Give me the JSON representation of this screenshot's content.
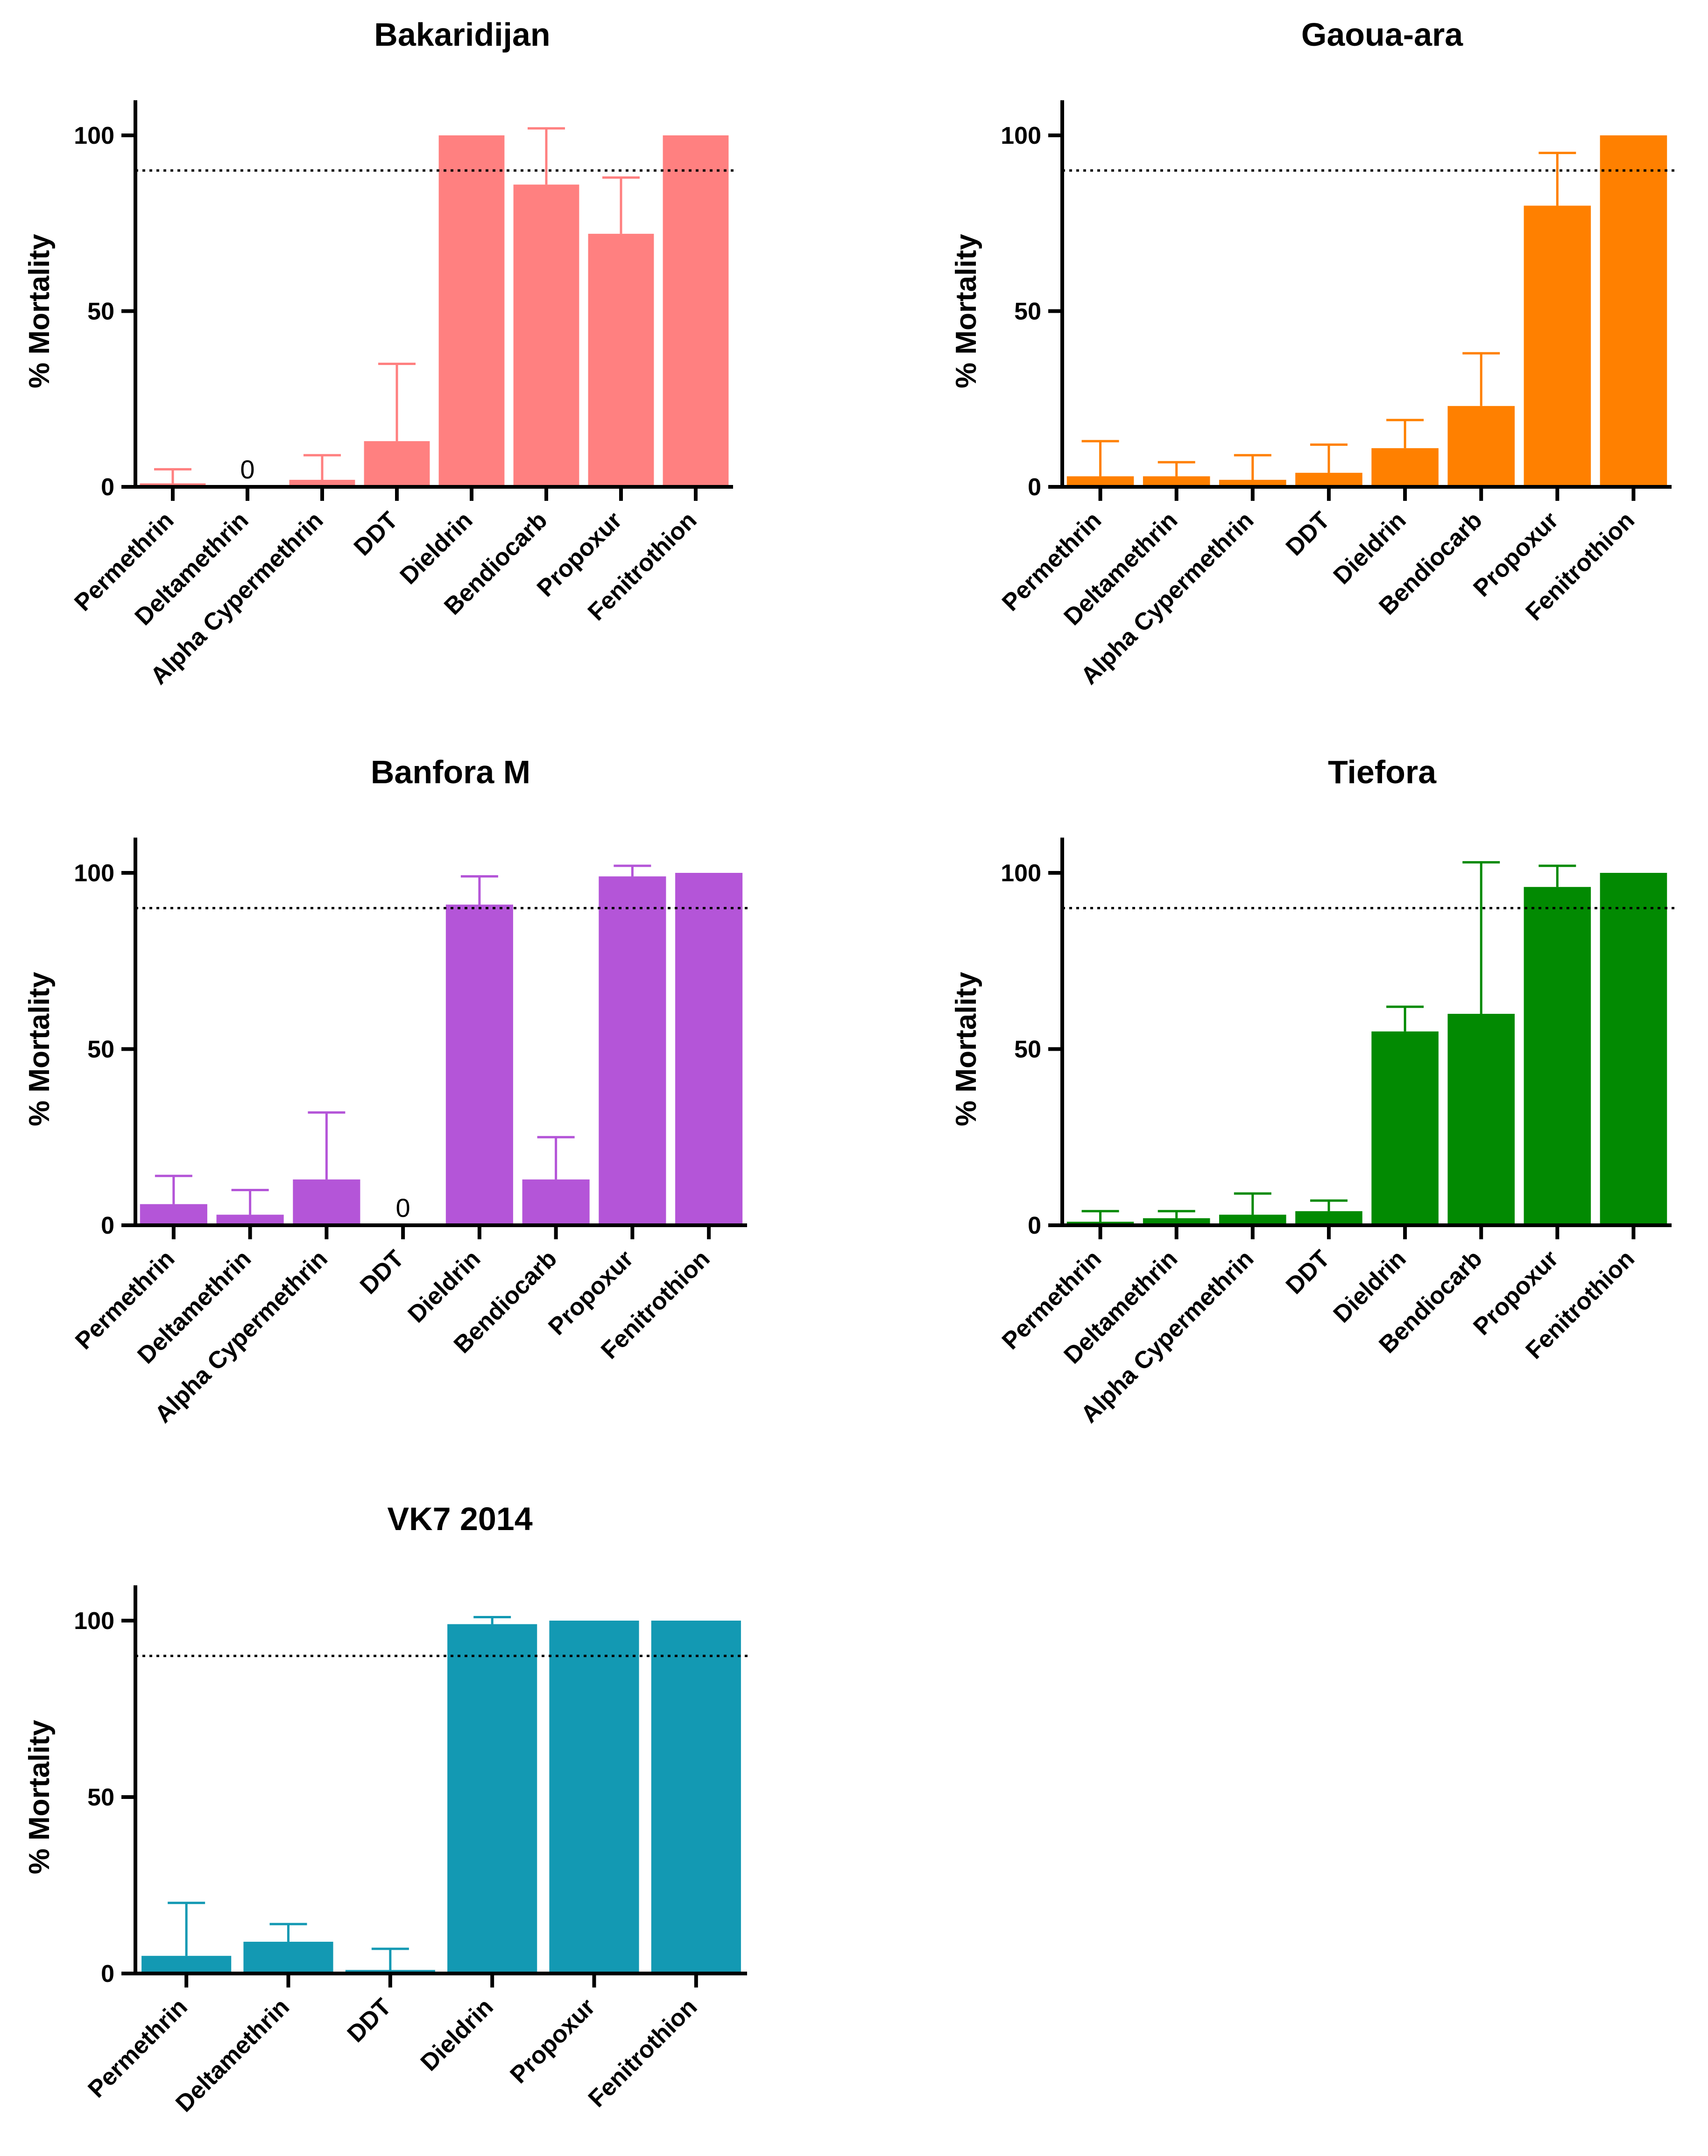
{
  "chart_data": [
    {
      "type": "bar",
      "title": "Bakaridijan",
      "ylabel": "% Mortality",
      "ylim": [
        0,
        110
      ],
      "yticks": [
        0,
        50,
        100
      ],
      "threshold": 90,
      "color": "#FF8080",
      "categories": [
        "Permethrin",
        "Deltamethrin",
        "Alpha Cypermethrin",
        "DDT",
        "Dieldrin",
        "Bendiocarb",
        "Propoxur",
        "Fenitrothion"
      ],
      "values": [
        1,
        0,
        2,
        13,
        100,
        86,
        72,
        100
      ],
      "error_upper": [
        5,
        null,
        9,
        35,
        null,
        102,
        88,
        null
      ],
      "data_labels": [
        null,
        "0",
        null,
        null,
        null,
        null,
        null,
        null
      ]
    },
    {
      "type": "bar",
      "title": "Gaoua-ara",
      "ylabel": "% Mortality",
      "ylim": [
        0,
        110
      ],
      "yticks": [
        0,
        50,
        100
      ],
      "threshold": 90,
      "color": "#FF8000",
      "categories": [
        "Permethrin",
        "Deltamethrin",
        "Alpha Cypermethrin",
        "DDT",
        "Dieldrin",
        "Bendiocarb",
        "Propoxur",
        "Fenitrothion"
      ],
      "values": [
        3,
        3,
        2,
        4,
        11,
        23,
        80,
        100
      ],
      "error_upper": [
        13,
        7,
        9,
        12,
        19,
        38,
        95,
        null
      ],
      "data_labels": [
        null,
        null,
        null,
        null,
        null,
        null,
        null,
        null
      ]
    },
    {
      "type": "bar",
      "title": "Banfora M",
      "ylabel": "% Mortality",
      "ylim": [
        0,
        110
      ],
      "yticks": [
        0,
        50,
        100
      ],
      "threshold": 90,
      "color": "#B455D8",
      "categories": [
        "Permethrin",
        "Deltamethrin",
        "Alpha Cypermethrin",
        "DDT",
        "Dieldrin",
        "Bendiocarb",
        "Propoxur",
        "Fenitrothion"
      ],
      "values": [
        6,
        3,
        13,
        0,
        91,
        13,
        99,
        100
      ],
      "error_upper": [
        14,
        10,
        32,
        null,
        99,
        25,
        102,
        null
      ],
      "data_labels": [
        null,
        null,
        null,
        "0",
        null,
        null,
        null,
        null
      ]
    },
    {
      "type": "bar",
      "title": "Tiefora",
      "ylabel": "% Mortality",
      "ylim": [
        0,
        110
      ],
      "yticks": [
        0,
        50,
        100
      ],
      "threshold": 90,
      "color": "#028A02",
      "categories": [
        "Permethrin",
        "Deltamethrin",
        "Alpha Cypermethrin",
        "DDT",
        "Dieldrin",
        "Bendiocarb",
        "Propoxur",
        "Fenitrothion"
      ],
      "values": [
        1,
        2,
        3,
        4,
        55,
        60,
        96,
        100
      ],
      "error_upper": [
        4,
        4,
        9,
        7,
        62,
        103,
        102,
        null
      ],
      "data_labels": [
        null,
        null,
        null,
        null,
        null,
        null,
        null,
        null
      ]
    },
    {
      "type": "bar",
      "title": "VK7 2014",
      "ylabel": "% Mortality",
      "ylim": [
        0,
        110
      ],
      "yticks": [
        0,
        50,
        100
      ],
      "threshold": 90,
      "color": "#1399B3",
      "categories": [
        "Permethrin",
        "Deltamethrin",
        "DDT",
        "Dieldrin",
        "Propoxur",
        "Fenitrothion"
      ],
      "values": [
        5,
        9,
        1,
        99,
        100,
        100
      ],
      "error_upper": [
        20,
        14,
        7,
        101,
        null,
        null
      ],
      "data_labels": [
        null,
        null,
        null,
        null,
        null,
        null
      ]
    }
  ]
}
